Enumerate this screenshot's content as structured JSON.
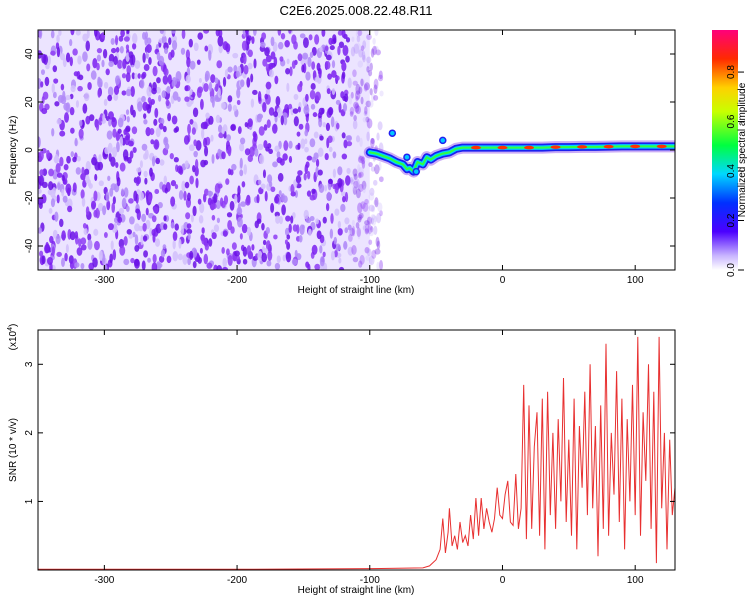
{
  "title": "C2E6.2025.008.22.48.R11",
  "chart_data": [
    {
      "type": "heatmap",
      "xlabel": "Height of straight line (km)",
      "ylabel": "Frequency (Hz)",
      "xlim": [
        -350,
        130
      ],
      "ylim": [
        -50,
        50
      ],
      "x_ticks": [
        -300,
        -200,
        -100,
        0,
        100
      ],
      "y_ticks": [
        -40,
        -20,
        0,
        20,
        40
      ],
      "noise_region": {
        "x_range": [
          -350,
          -100
        ],
        "y_range": [
          -50,
          50
        ],
        "color": "#7a1ef0"
      },
      "signal_track": {
        "x": [
          -100,
          -95,
          -90,
          -85,
          -80,
          -75,
          -72,
          -70,
          -67,
          -64,
          -60,
          -57,
          -54,
          -50,
          -45,
          -40,
          -35,
          -30,
          -20,
          -10,
          0,
          10,
          20,
          30,
          40,
          50,
          60,
          70,
          80,
          90,
          100,
          110,
          120,
          130
        ],
        "y": [
          -1,
          -1.5,
          -2.5,
          -3.5,
          -5,
          -6,
          -8,
          -7.5,
          -9,
          -5,
          -6,
          -3,
          -4,
          -2.5,
          -1.5,
          -1,
          0.5,
          1,
          1,
          1,
          1,
          1,
          1,
          1,
          1.2,
          1.2,
          1.3,
          1.3,
          1.4,
          1.5,
          1.5,
          1.5,
          1.5,
          1.5
        ]
      },
      "colorbar": {
        "label": "Normalized spectral amplitude",
        "ticks": [
          0.0,
          0.2,
          0.4,
          0.6,
          0.8
        ],
        "range": [
          0,
          0.97
        ]
      }
    },
    {
      "type": "line",
      "xlabel": "Height of straight line (km)",
      "ylabel": "SNR (10 * v/v)",
      "multiplier_label": "(x10",
      "multiplier_exp": "4",
      "multiplier_close": ")",
      "xlim": [
        -350,
        130
      ],
      "ylim": [
        0,
        3.5
      ],
      "x_ticks": [
        -300,
        -200,
        -100,
        0,
        100
      ],
      "y_ticks": [
        1,
        2,
        3
      ],
      "color": "#e83030",
      "series": [
        {
          "x": [
            -350,
            -300,
            -200,
            -100,
            -60,
            -55,
            -50,
            -47,
            -45,
            -43,
            -41,
            -40,
            -38,
            -36,
            -34,
            -32,
            -30,
            -28,
            -26,
            -24,
            -22,
            -20,
            -18,
            -16,
            -14,
            -12,
            -10,
            -8,
            -6,
            -4,
            -2,
            0,
            2,
            4,
            6,
            8,
            10,
            12,
            14,
            16,
            18,
            20,
            22,
            24,
            26,
            28,
            30,
            32,
            34,
            36,
            38,
            40,
            42,
            44,
            46,
            48,
            50,
            52,
            54,
            56,
            58,
            60,
            62,
            64,
            66,
            68,
            70,
            72,
            74,
            76,
            78,
            80,
            82,
            84,
            86,
            88,
            90,
            92,
            94,
            96,
            98,
            100,
            102,
            104,
            106,
            108,
            110,
            112,
            114,
            116,
            118,
            120,
            122,
            124,
            126,
            128,
            130
          ],
          "values": [
            0.01,
            0.01,
            0.01,
            0.02,
            0.03,
            0.06,
            0.15,
            0.3,
            0.75,
            0.25,
            0.55,
            0.9,
            0.35,
            0.5,
            0.3,
            0.7,
            0.4,
            0.5,
            0.35,
            0.8,
            0.45,
            1.05,
            0.5,
            1.05,
            0.6,
            0.9,
            0.7,
            0.55,
            0.75,
            1.2,
            0.8,
            0.75,
            1.1,
            1.3,
            0.7,
            0.65,
            1.4,
            0.6,
            0.9,
            2.7,
            0.45,
            2.4,
            0.6,
            1.8,
            2.3,
            0.5,
            2.5,
            0.3,
            2.6,
            0.8,
            2.0,
            0.6,
            2.2,
            1.0,
            2.8,
            0.7,
            1.9,
            0.5,
            2.5,
            0.3,
            2.1,
            1.2,
            2.6,
            0.8,
            3.0,
            0.9,
            2.1,
            0.2,
            2.4,
            0.6,
            3.3,
            0.5,
            2.0,
            1.1,
            2.9,
            0.7,
            2.5,
            0.3,
            2.2,
            1.0,
            2.7,
            0.8,
            3.4,
            0.5,
            2.3,
            1.3,
            3.0,
            0.6,
            2.6,
            0.1,
            3.4,
            0.9,
            2.0,
            0.3,
            1.9,
            0.8,
            1.2
          ]
        }
      ]
    }
  ]
}
